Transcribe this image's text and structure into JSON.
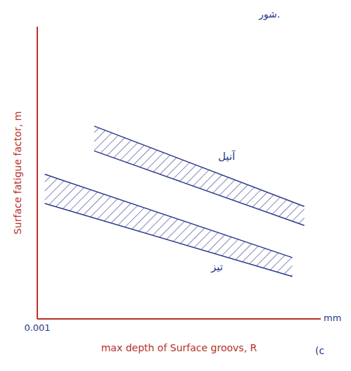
{
  "chart_data": {
    "type": "area",
    "xlabel": "max depth of Surface groovs, R",
    "ylabel": "Surface fatigue factor, m",
    "x_unit": "mm",
    "log": "x",
    "xlim": [
      0.001,
      1
    ],
    "xticks": [
      0.001
    ],
    "ylim": [
      0,
      10
    ],
    "tick_labels": "x",
    "grid": false,
    "color": "#2a3a8c",
    "annotations": [
      "شور.",
      "(c"
    ],
    "series": [
      {
        "name": "آنیل",
        "color": "#2a3a8c",
        "x": [
          0.004,
          0.67
        ],
        "lower": [
          5.75,
          3.2
        ],
        "upper": [
          6.6,
          3.85
        ]
      },
      {
        "name": "تیز",
        "color": "#2a3a8c",
        "x": [
          0.0012,
          0.5
        ],
        "lower": [
          3.95,
          1.45
        ],
        "upper": [
          4.95,
          2.1
        ]
      }
    ]
  }
}
